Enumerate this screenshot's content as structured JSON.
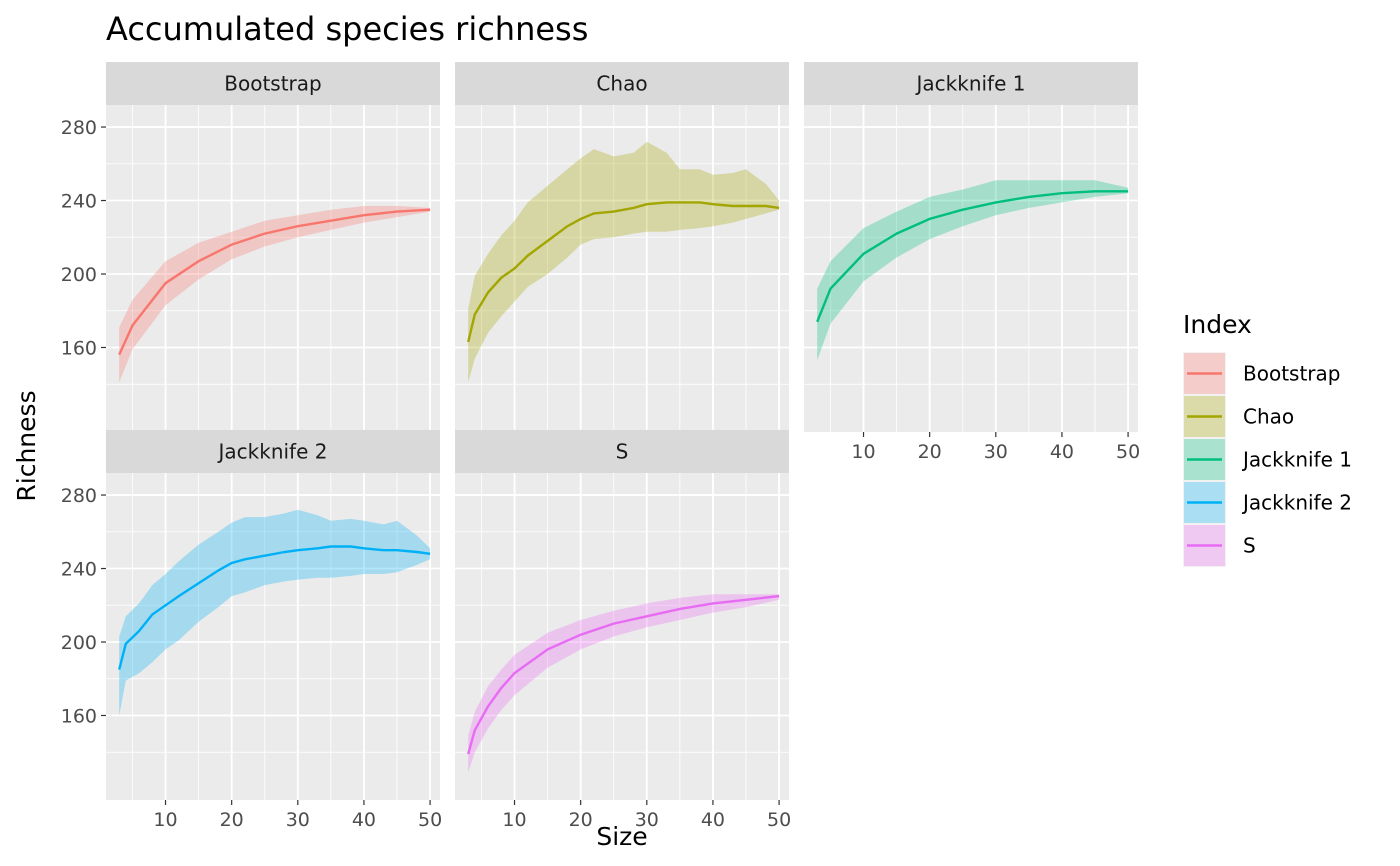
{
  "chart_data": {
    "type": "line",
    "title": "Accumulated species richness",
    "xlabel": "Size",
    "ylabel": "Richness",
    "xlim": [
      1,
      51.5
    ],
    "ylim": [
      114,
      292
    ],
    "x_ticks": [
      "10",
      "20",
      "30",
      "40",
      "50"
    ],
    "y_ticks": [
      "160",
      "200",
      "240",
      "280"
    ],
    "grid": true,
    "legend": {
      "title": "Index",
      "position": "right"
    },
    "series": [
      {
        "name": "Bootstrap",
        "color": "#F8766D",
        "x": [
          3,
          5,
          10,
          15,
          20,
          25,
          30,
          35,
          40,
          45,
          50
        ],
        "y": [
          156,
          172,
          195,
          207,
          216,
          222,
          226,
          229,
          232,
          234,
          235
        ],
        "lower": [
          141,
          159,
          183,
          197,
          208,
          215,
          220,
          224,
          228,
          231,
          234
        ],
        "upper": [
          171,
          186,
          207,
          217,
          223,
          229,
          232,
          235,
          237,
          237,
          236
        ]
      },
      {
        "name": "Chao",
        "color": "#A3A500",
        "x": [
          3,
          4,
          6,
          8,
          10,
          12,
          15,
          18,
          20,
          22,
          25,
          28,
          30,
          33,
          35,
          38,
          40,
          43,
          45,
          48,
          50
        ],
        "y": [
          163,
          178,
          190,
          198,
          203,
          210,
          218,
          226,
          230,
          233,
          234,
          236,
          238,
          239,
          239,
          239,
          238,
          237,
          237,
          237,
          236
        ],
        "lower": [
          141,
          154,
          168,
          177,
          185,
          193,
          200,
          209,
          216,
          219,
          220,
          222,
          223,
          223,
          224,
          225,
          226,
          228,
          230,
          233,
          235
        ],
        "upper": [
          181,
          199,
          211,
          221,
          229,
          239,
          248,
          257,
          263,
          268,
          264,
          266,
          272,
          266,
          257,
          257,
          254,
          255,
          257,
          249,
          240
        ]
      },
      {
        "name": "Jackknife 1",
        "color": "#00BF7D",
        "x": [
          3,
          5,
          10,
          15,
          20,
          25,
          30,
          35,
          40,
          45,
          50
        ],
        "y": [
          174,
          192,
          211,
          222,
          230,
          235,
          239,
          242,
          244,
          245,
          245
        ],
        "lower": [
          153,
          173,
          196,
          209,
          219,
          226,
          232,
          236,
          239,
          242,
          244
        ],
        "upper": [
          192,
          207,
          225,
          234,
          242,
          246,
          251,
          251,
          251,
          251,
          247
        ]
      },
      {
        "name": "Jackknife 2",
        "color": "#00B0F6",
        "x": [
          3,
          4,
          6,
          8,
          10,
          12,
          15,
          18,
          20,
          22,
          25,
          28,
          30,
          33,
          35,
          38,
          40,
          43,
          45,
          48,
          50
        ],
        "y": [
          185,
          199,
          206,
          215,
          220,
          225,
          232,
          239,
          243,
          245,
          247,
          249,
          250,
          251,
          252,
          252,
          251,
          250,
          250,
          249,
          248
        ],
        "lower": [
          160,
          179,
          183,
          189,
          196,
          201,
          211,
          219,
          225,
          227,
          231,
          233,
          234,
          235,
          235,
          236,
          237,
          237,
          238,
          242,
          245
        ],
        "upper": [
          203,
          214,
          221,
          231,
          237,
          244,
          253,
          260,
          265,
          268,
          268,
          270,
          272,
          269,
          266,
          267,
          266,
          264,
          266,
          258,
          251
        ]
      },
      {
        "name": "S",
        "color": "#E76BF3",
        "x": [
          3,
          4,
          6,
          8,
          10,
          15,
          20,
          25,
          30,
          35,
          40,
          45,
          50
        ],
        "y": [
          139,
          152,
          165,
          175,
          183,
          196,
          204,
          210,
          214,
          218,
          221,
          223,
          225
        ],
        "lower": [
          129,
          140,
          153,
          163,
          171,
          186,
          196,
          203,
          208,
          212,
          216,
          219,
          223
        ],
        "upper": [
          149,
          162,
          176,
          185,
          193,
          205,
          212,
          217,
          221,
          224,
          226,
          226,
          226
        ]
      }
    ]
  }
}
